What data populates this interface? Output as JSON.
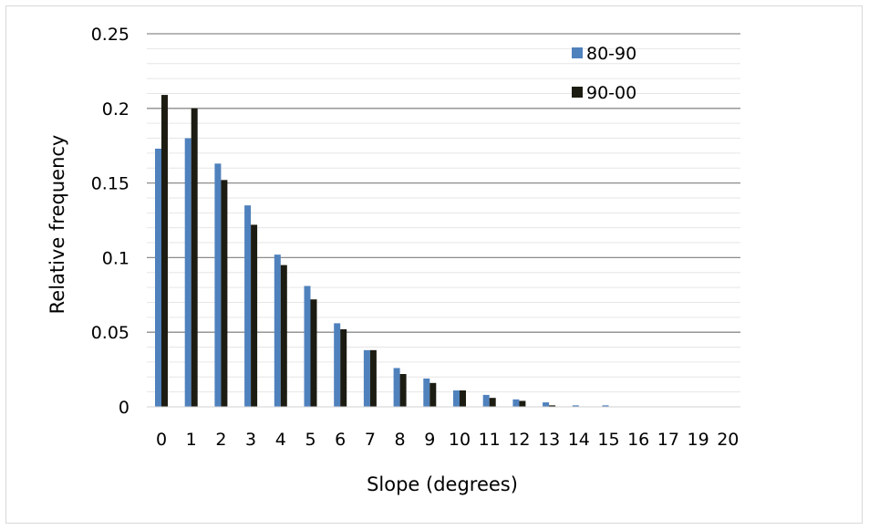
{
  "chart_data": {
    "type": "bar",
    "title": "",
    "xlabel": "Slope (degrees)",
    "ylabel": "Relative frequency",
    "ylim": [
      0,
      0.25
    ],
    "y_ticks": [
      "0",
      "0.05",
      "0.1",
      "0.15",
      "0.2",
      "0.25"
    ],
    "y_tick_values": [
      0,
      0.05,
      0.1,
      0.15,
      0.2,
      0.25
    ],
    "minor_grid_step": 0.01,
    "grid": true,
    "legend_position": "top-right",
    "categories": [
      "0",
      "1",
      "2",
      "3",
      "4",
      "5",
      "6",
      "7",
      "8",
      "9",
      "10",
      "11",
      "12",
      "13",
      "14",
      "15",
      "16",
      "17",
      "19",
      "20"
    ],
    "series": [
      {
        "name": "80-90",
        "color": "#4f81bd",
        "values": [
          0.173,
          0.18,
          0.163,
          0.135,
          0.102,
          0.081,
          0.056,
          0.038,
          0.026,
          0.019,
          0.011,
          0.008,
          0.005,
          0.003,
          0.001,
          0.001,
          0.0003,
          0.0002,
          0.0001,
          0.0001
        ]
      },
      {
        "name": "90-00",
        "color": "#1c1c12",
        "values": [
          0.209,
          0.2,
          0.152,
          0.122,
          0.095,
          0.072,
          0.052,
          0.038,
          0.022,
          0.016,
          0.011,
          0.006,
          0.004,
          0.001,
          0.0003,
          0.0002,
          0.0001,
          0.0001,
          0.0001,
          0.0001
        ]
      }
    ]
  }
}
